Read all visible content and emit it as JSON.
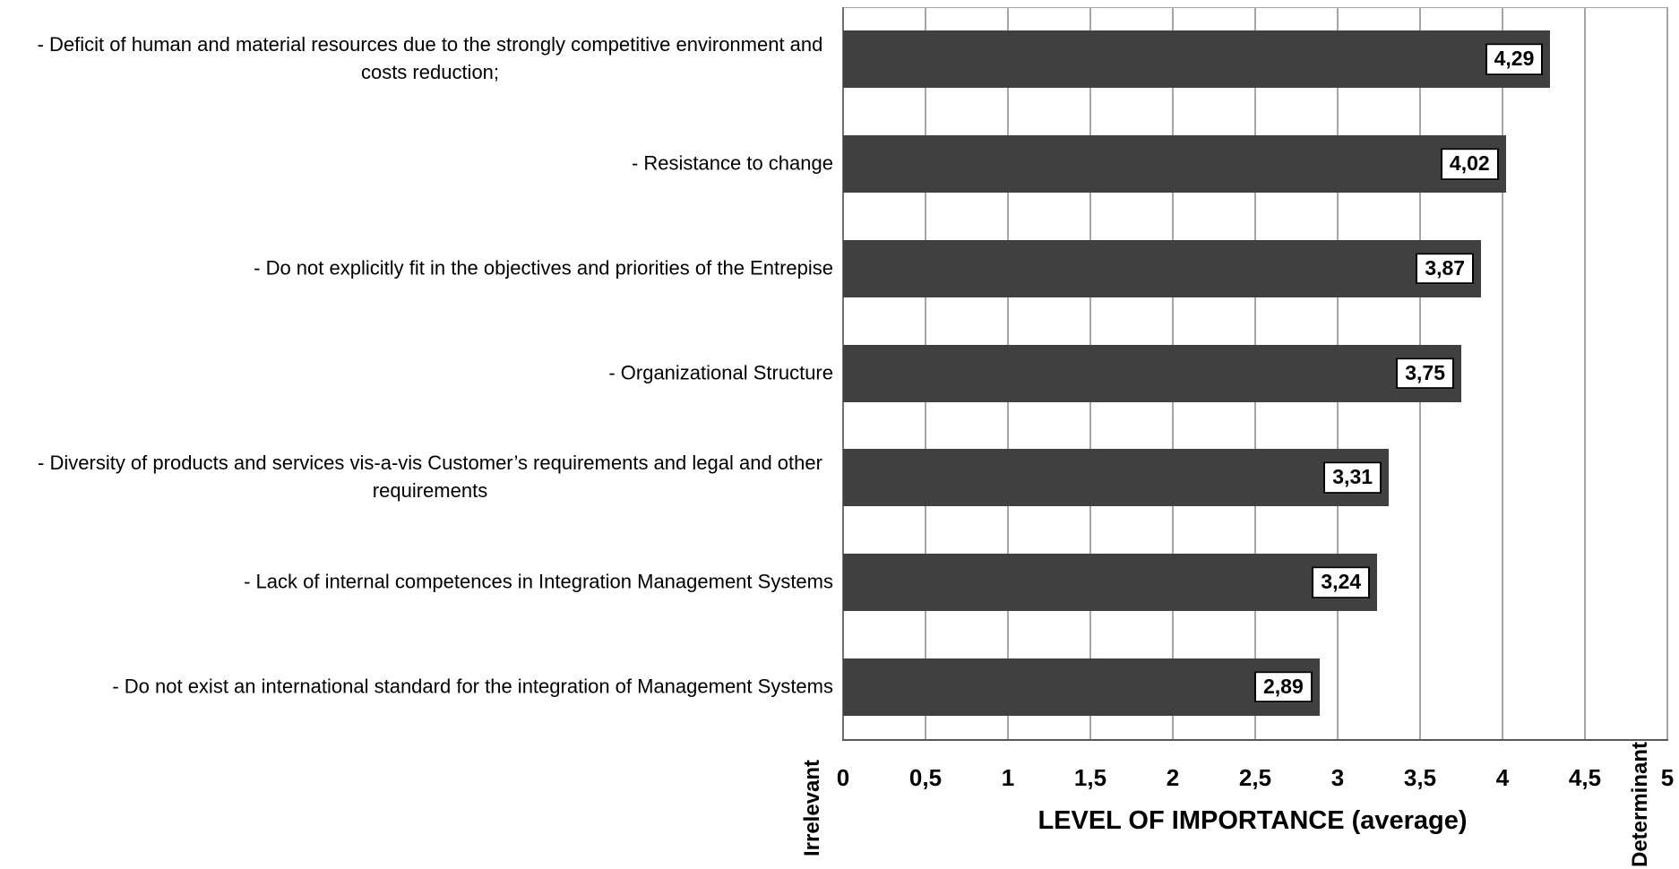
{
  "chart_data": {
    "type": "bar",
    "orientation": "horizontal",
    "title": "",
    "xlabel": "LEVEL OF IMPORTANCE (average)",
    "ylabel": "",
    "xlim": [
      0,
      5
    ],
    "grid": true,
    "legend": false,
    "bar_color": "#404040",
    "gridline_color": "#a6a6a6",
    "axis_color": "#808080",
    "value_box_bg": "#ffffff",
    "value_box_border": "#000000",
    "categories": [
      "- Deficit of human and material resources due to the strongly competitive environment and costs reduction;",
      "- Resistance to change",
      "- Do not explicitly fit in the objectives and priorities of the Entrepise",
      "- Organizational Structure",
      "- Diversity of products and services vis-a-vis Customer’s requirements and legal and other requirements",
      "- Lack of internal competences in Integration Management Systems",
      "- Do not exist an international standard for the integration of Management Systems"
    ],
    "values": [
      4.29,
      4.02,
      3.87,
      3.75,
      3.31,
      3.24,
      2.89
    ],
    "value_labels": [
      "4,29",
      "4,02",
      "3,87",
      "3,75",
      "3,31",
      "3,24",
      "2,89"
    ],
    "x_tick_values": [
      0,
      0.5,
      1,
      1.5,
      2,
      2.5,
      3,
      3.5,
      4,
      4.5,
      5
    ],
    "x_tick_labels": [
      "0",
      "0,5",
      "1",
      "1,5",
      "2",
      "2,5",
      "3",
      "3,5",
      "4",
      "4,5",
      "5"
    ],
    "axis_start_annotation": "Irrelevant",
    "axis_end_annotation": "Determinant"
  }
}
